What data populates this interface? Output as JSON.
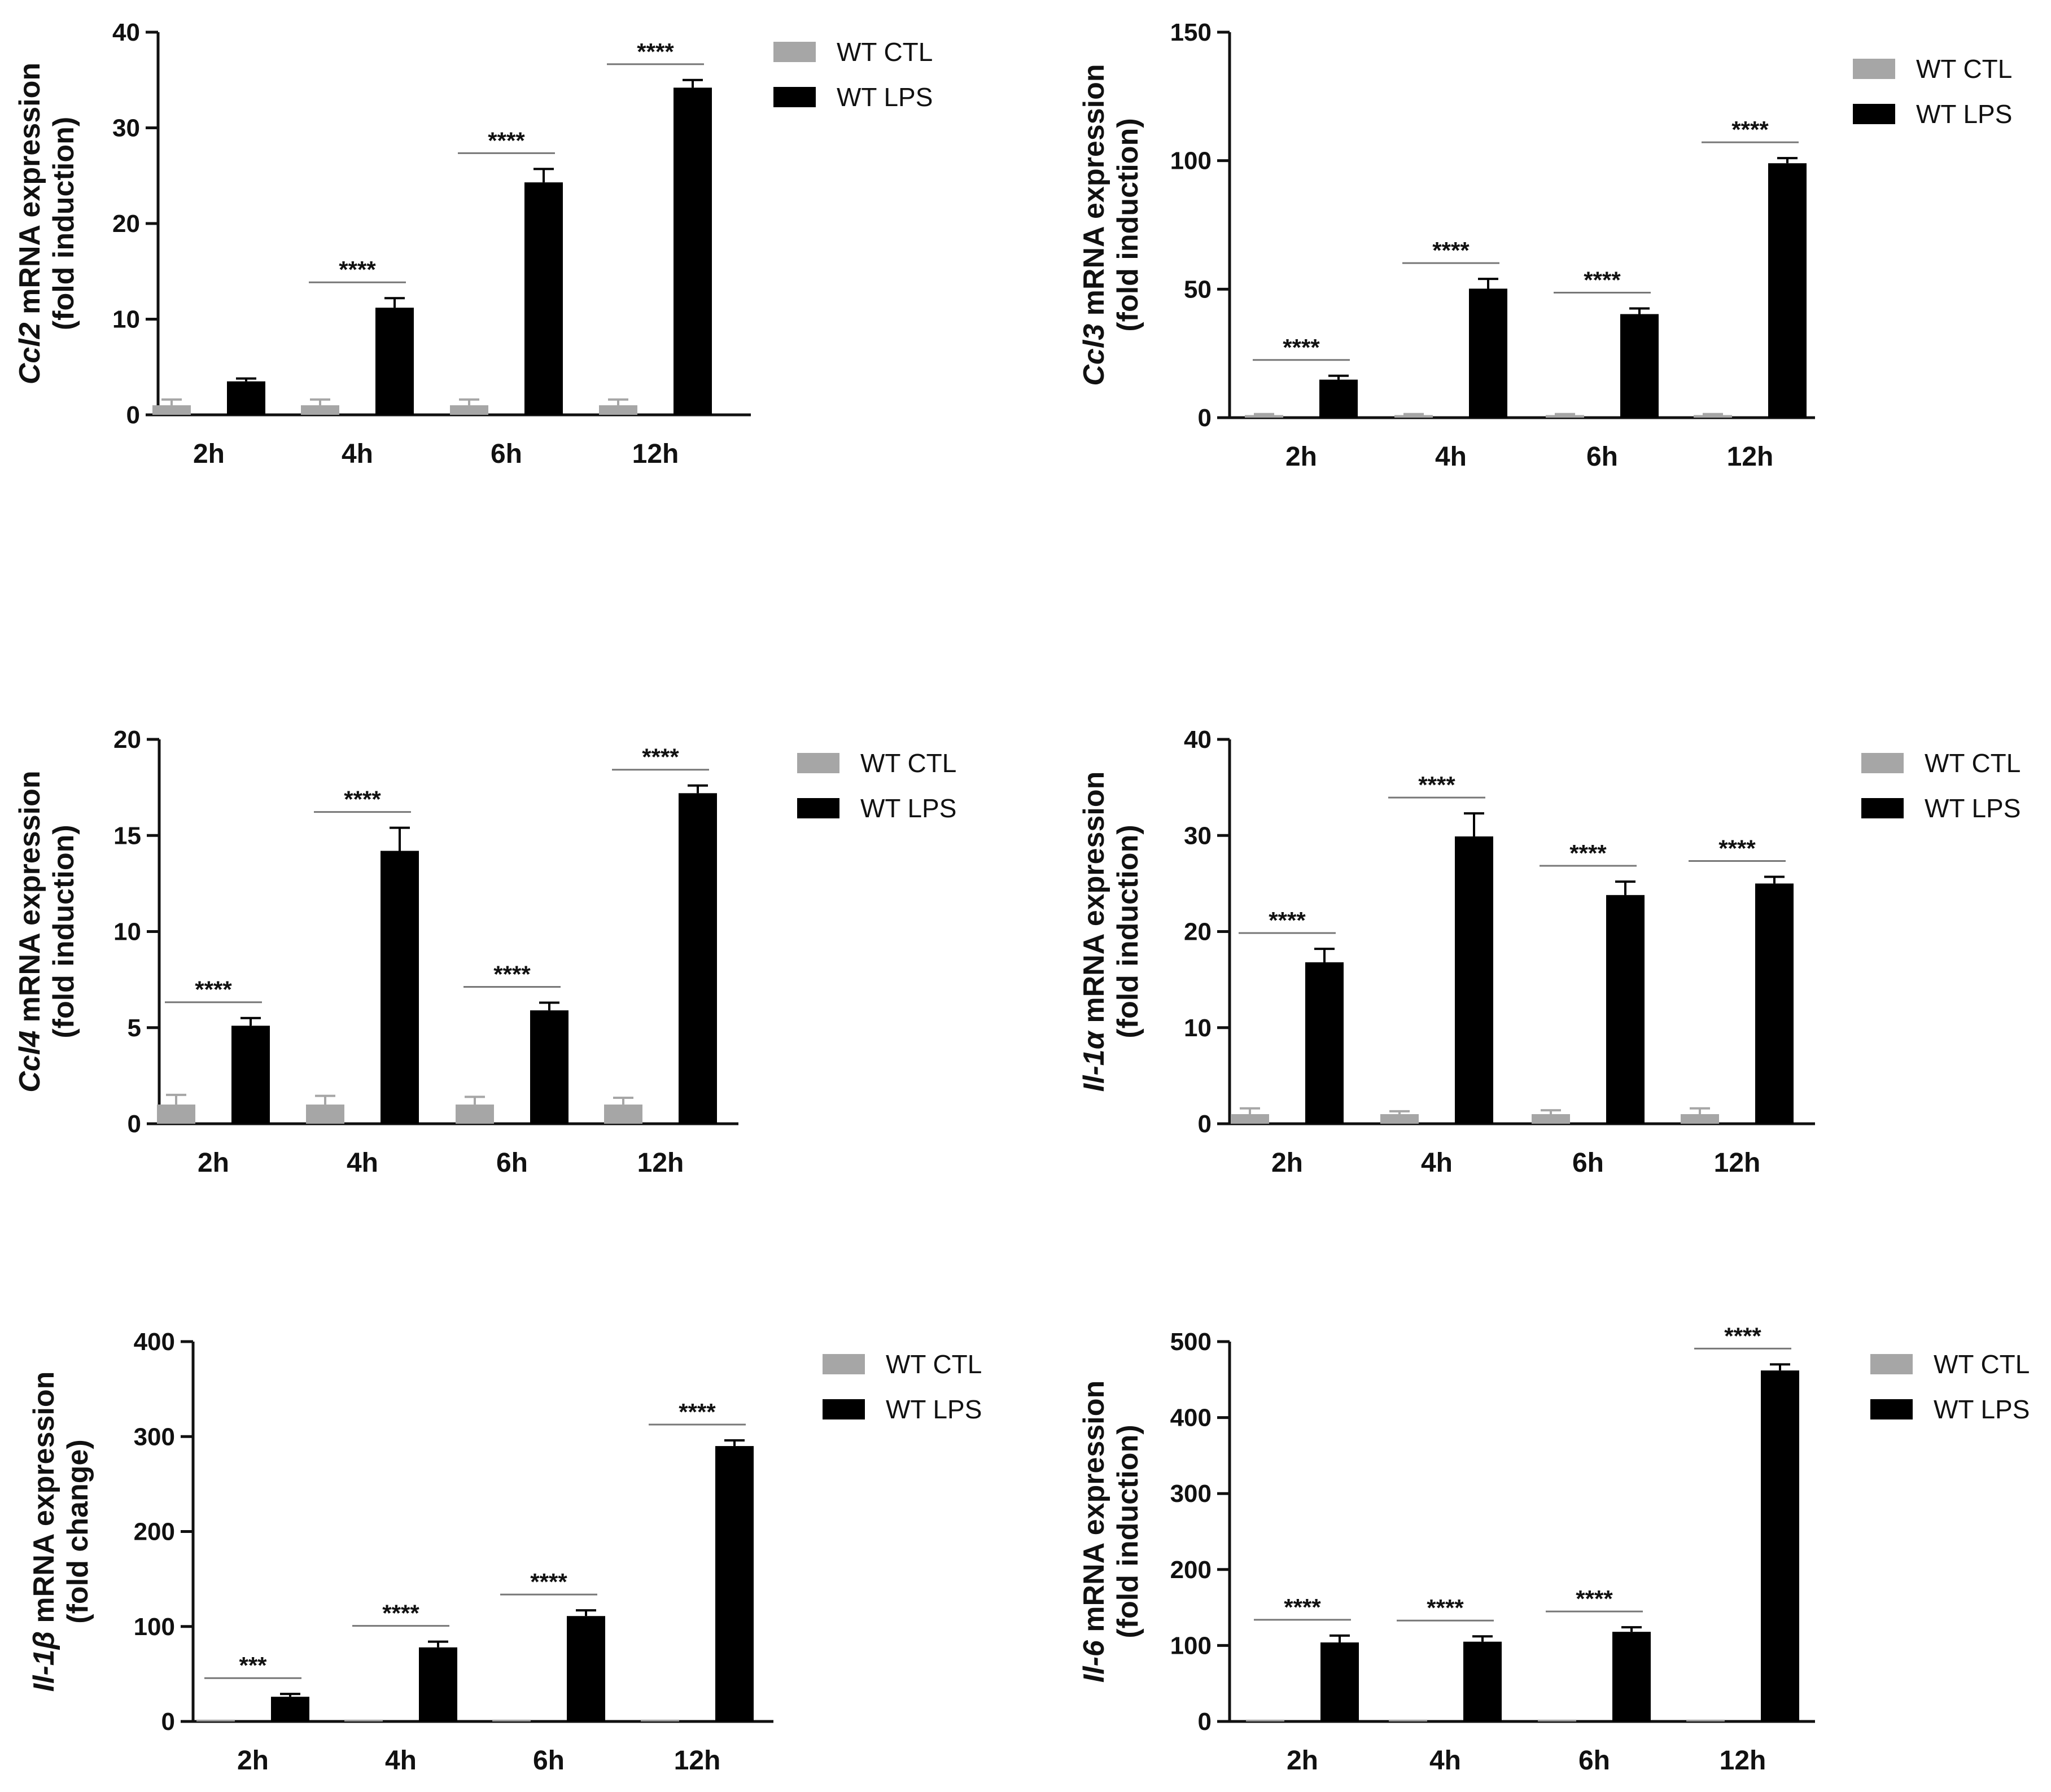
{
  "chart_data": [
    {
      "type": "bar",
      "gene": "Ccl2",
      "ylabel_suffix": " mRNA expression",
      "ylabel_line2": "(fold induction)",
      "categories": [
        "2h",
        "4h",
        "6h",
        "12h"
      ],
      "ylim": [
        0,
        40
      ],
      "yticks": [
        0,
        10,
        20,
        30,
        40
      ],
      "series": [
        {
          "name": "WT CTL",
          "color": "#a6a6a6",
          "values": [
            1,
            1,
            1,
            1
          ],
          "errors": [
            0.6,
            0.6,
            0.6,
            0.6
          ]
        },
        {
          "name": "WT LPS",
          "color": "#000000",
          "values": [
            3.5,
            11.2,
            24.3,
            34.2
          ],
          "errors": [
            0.3,
            1.0,
            1.4,
            0.8
          ]
        }
      ],
      "significance": [
        "",
        "****",
        "****",
        "****"
      ]
    },
    {
      "type": "bar",
      "gene": "Ccl3",
      "ylabel_suffix": " mRNA expression",
      "ylabel_line2": "(fold induction)",
      "categories": [
        "2h",
        "4h",
        "6h",
        "12h"
      ],
      "ylim": [
        0,
        150
      ],
      "yticks": [
        0,
        50,
        100,
        150
      ],
      "series": [
        {
          "name": "WT CTL",
          "color": "#a6a6a6",
          "values": [
            1,
            1,
            1,
            1
          ],
          "errors": [
            0.4,
            0.4,
            0.4,
            0.4
          ]
        },
        {
          "name": "WT LPS",
          "color": "#000000",
          "values": [
            14.8,
            50.2,
            40.3,
            99.0
          ],
          "errors": [
            1.5,
            3.8,
            2.2,
            2.0
          ]
        }
      ],
      "significance": [
        "****",
        "****",
        "****",
        "****"
      ]
    },
    {
      "type": "bar",
      "gene": "Ccl4",
      "ylabel_suffix": " mRNA expression",
      "ylabel_line2": "(fold induction)",
      "categories": [
        "2h",
        "4h",
        "6h",
        "12h"
      ],
      "ylim": [
        0,
        20
      ],
      "yticks": [
        0,
        5,
        10,
        15,
        20
      ],
      "series": [
        {
          "name": "WT CTL",
          "color": "#a6a6a6",
          "values": [
            1,
            1,
            1,
            1
          ],
          "errors": [
            0.5,
            0.45,
            0.4,
            0.35
          ]
        },
        {
          "name": "WT LPS",
          "color": "#000000",
          "values": [
            5.1,
            14.2,
            5.9,
            17.2
          ],
          "errors": [
            0.4,
            1.2,
            0.4,
            0.4
          ]
        }
      ],
      "significance": [
        "****",
        "****",
        "****",
        "****"
      ]
    },
    {
      "type": "bar",
      "gene": "Il-1α",
      "ylabel_suffix": " mRNA expression",
      "ylabel_line2": "(fold induction)",
      "categories": [
        "2h",
        "4h",
        "6h",
        "12h"
      ],
      "ylim": [
        0,
        40
      ],
      "yticks": [
        0,
        10,
        20,
        30,
        40
      ],
      "series": [
        {
          "name": "WT CTL",
          "color": "#a6a6a6",
          "values": [
            1,
            1,
            1,
            1
          ],
          "errors": [
            0.6,
            0.3,
            0.4,
            0.6
          ]
        },
        {
          "name": "WT LPS",
          "color": "#000000",
          "values": [
            16.8,
            29.9,
            23.8,
            25.0
          ],
          "errors": [
            1.4,
            2.4,
            1.4,
            0.7
          ]
        }
      ],
      "significance": [
        "****",
        "****",
        "****",
        "****"
      ]
    },
    {
      "type": "bar",
      "gene": "Il-1β",
      "ylabel_suffix": " mRNA expression",
      "ylabel_line2": "(fold change)",
      "categories": [
        "2h",
        "4h",
        "6h",
        "12h"
      ],
      "ylim": [
        0,
        400
      ],
      "yticks": [
        0,
        100,
        200,
        300,
        400
      ],
      "series": [
        {
          "name": "WT CTL",
          "color": "#a6a6a6",
          "values": [
            1,
            1,
            1,
            1
          ],
          "errors": [
            0,
            0,
            0,
            0
          ]
        },
        {
          "name": "WT LPS",
          "color": "#000000",
          "values": [
            26,
            78,
            111,
            290
          ],
          "errors": [
            3,
            6,
            6,
            6
          ]
        }
      ],
      "significance": [
        "***",
        "****",
        "****",
        "****"
      ]
    },
    {
      "type": "bar",
      "gene": "Il-6",
      "ylabel_suffix": " mRNA expression",
      "ylabel_line2": "(fold induction)",
      "categories": [
        "2h",
        "4h",
        "6h",
        "12h"
      ],
      "ylim": [
        0,
        500
      ],
      "yticks": [
        0,
        100,
        200,
        300,
        400,
        500
      ],
      "series": [
        {
          "name": "WT CTL",
          "color": "#a6a6a6",
          "values": [
            1,
            1,
            1,
            1
          ],
          "errors": [
            0,
            0,
            0,
            0
          ]
        },
        {
          "name": "WT LPS",
          "color": "#000000",
          "values": [
            104,
            105,
            118,
            462
          ],
          "errors": [
            9,
            7,
            6,
            8
          ]
        }
      ],
      "significance": [
        "****",
        "****",
        "****",
        "****"
      ]
    }
  ]
}
